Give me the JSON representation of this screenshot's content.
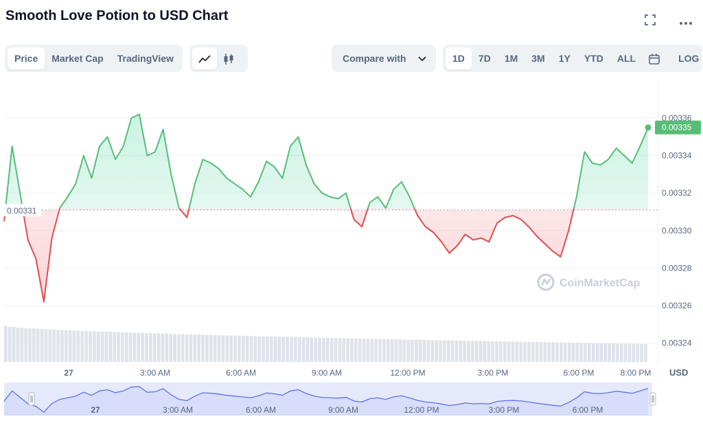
{
  "header": {
    "title": "Smooth Love Potion to USD Chart",
    "fullscreen_icon": "fullscreen-icon",
    "more_icon": "more-dots-icon"
  },
  "toolbar": {
    "view_tabs": [
      "Price",
      "Market Cap",
      "TradingView"
    ],
    "active_view": "Price",
    "chart_type_icons": [
      "line-chart-icon",
      "candlestick-icon"
    ],
    "compare_label": "Compare with",
    "ranges": [
      "1D",
      "7D",
      "1M",
      "3M",
      "1Y",
      "YTD",
      "ALL"
    ],
    "active_range": "1D",
    "calendar_icon": "calendar-icon",
    "log_label": "LOG"
  },
  "watermark": "CoinMarketCap",
  "colors": {
    "up": "#16c784",
    "up_line": "#57bd76",
    "down_line": "#e04d4d",
    "baseline_dots": "#9aa3b4",
    "navigator_fill": "#e5e9fb",
    "navigator_line": "#5b73e8"
  },
  "chart_data": {
    "type": "line",
    "title": "Smooth Love Potion to USD Chart",
    "ylabel": "USD",
    "ylim": [
      0.00323,
      0.00337
    ],
    "y_ticks": [
      "0.00336",
      "0.00334",
      "0.00332",
      "0.00330",
      "0.00328",
      "0.00326",
      "0.00324"
    ],
    "x_ticks": [
      "27",
      "3:00 AM",
      "6:00 AM",
      "9:00 AM",
      "12:00 PM",
      "3:00 PM",
      "6:00 PM",
      "8:00 PM"
    ],
    "navigator_ticks": [
      "27",
      "3:00 AM",
      "6:00 AM",
      "9:00 AM",
      "12:00 PM",
      "3:00 PM",
      "6:00 PM"
    ],
    "baseline": 0.003311,
    "baseline_label": "0.00331",
    "last_price": 0.003355,
    "last_price_label": "0.00335",
    "x_hours": [
      0,
      0.25,
      0.5,
      0.75,
      1,
      1.25,
      1.5,
      1.75,
      2,
      2.25,
      2.5,
      2.75,
      3,
      3.25,
      3.5,
      3.75,
      4,
      4.25,
      4.5,
      4.75,
      5,
      5.25,
      5.5,
      5.75,
      6,
      6.25,
      6.5,
      6.75,
      7,
      7.25,
      7.5,
      7.75,
      8,
      8.25,
      8.5,
      8.75,
      9,
      9.25,
      9.5,
      9.75,
      10,
      10.25,
      10.5,
      10.75,
      11,
      11.25,
      11.5,
      11.75,
      12,
      12.25,
      12.5,
      12.75,
      13,
      13.25,
      13.5,
      13.75,
      14,
      14.25,
      14.5,
      14.75,
      15,
      15.25,
      15.5,
      15.75,
      16,
      16.25,
      16.5,
      16.75,
      17,
      17.25,
      17.5,
      17.75,
      18,
      18.25,
      18.5,
      18.75,
      19,
      19.25,
      19.5,
      19.75,
      20,
      20.25
    ],
    "values": [
      0.003305,
      0.003345,
      0.00332,
      0.003295,
      0.003285,
      0.003262,
      0.003296,
      0.003312,
      0.003318,
      0.003325,
      0.00334,
      0.003328,
      0.003345,
      0.00335,
      0.003338,
      0.003345,
      0.00336,
      0.003362,
      0.00334,
      0.003342,
      0.003354,
      0.00333,
      0.003312,
      0.003307,
      0.003325,
      0.003338,
      0.003336,
      0.003333,
      0.003328,
      0.003325,
      0.003322,
      0.003318,
      0.003326,
      0.003337,
      0.003334,
      0.003328,
      0.003345,
      0.00335,
      0.003335,
      0.003325,
      0.00332,
      0.003318,
      0.003317,
      0.00332,
      0.003306,
      0.003302,
      0.003315,
      0.003318,
      0.003312,
      0.003322,
      0.003326,
      0.003318,
      0.003308,
      0.003302,
      0.003299,
      0.003294,
      0.003288,
      0.003292,
      0.003298,
      0.003295,
      0.003296,
      0.003294,
      0.003304,
      0.003307,
      0.003308,
      0.003306,
      0.003302,
      0.003297,
      0.003293,
      0.003289,
      0.003286,
      0.0033,
      0.003318,
      0.003342,
      0.003336,
      0.003335,
      0.003338,
      0.003344,
      0.00334,
      0.003336,
      0.003345,
      0.003355
    ],
    "volume_bars": 160,
    "volume_start": 0.85,
    "volume_end": 0.42
  }
}
